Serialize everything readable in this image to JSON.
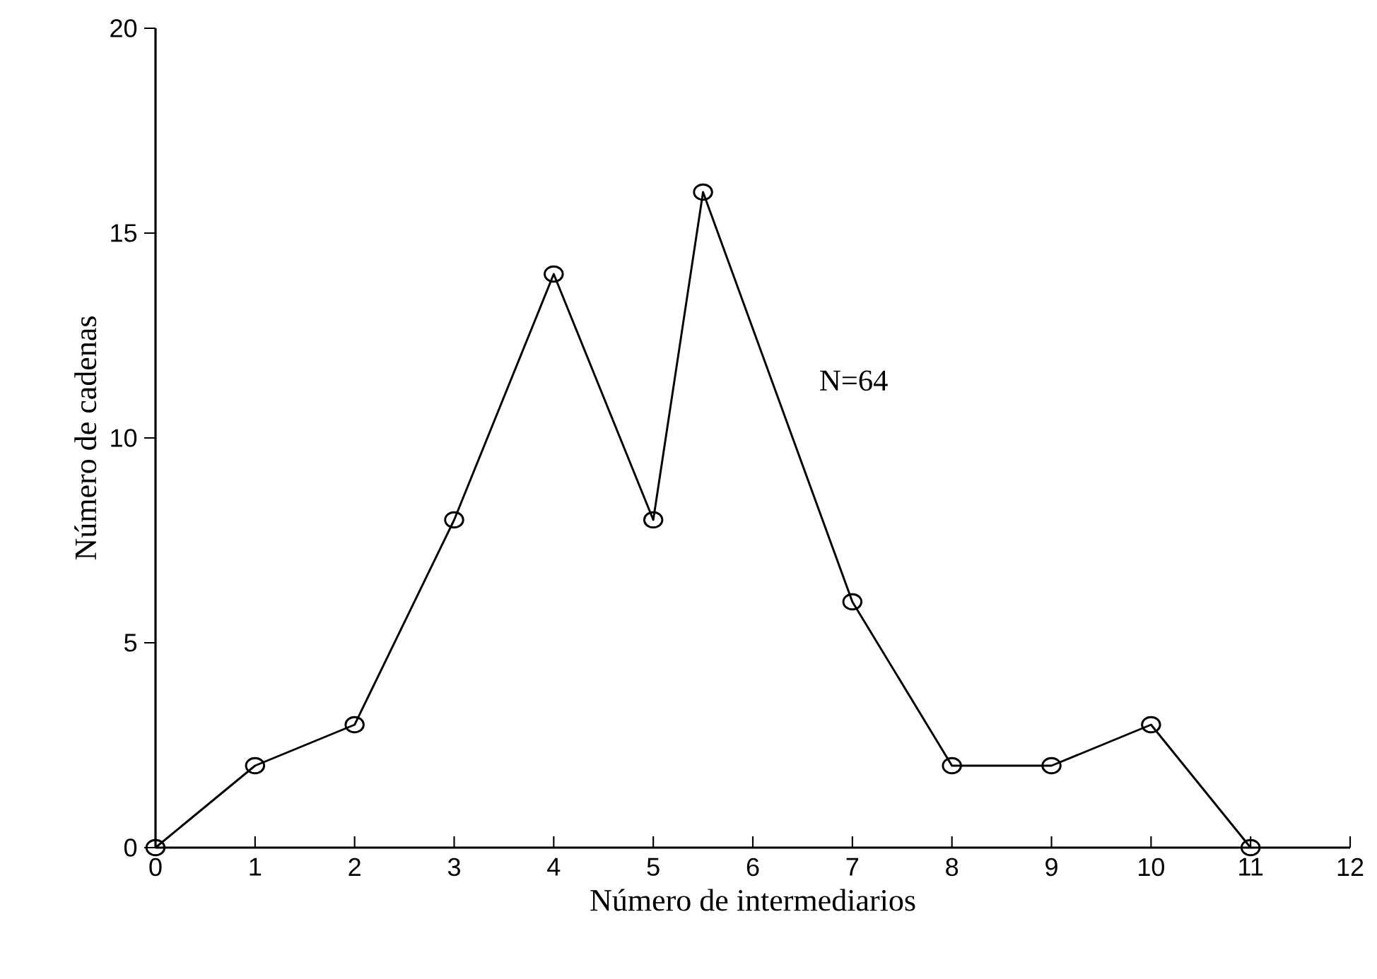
{
  "chart_data": {
    "type": "line",
    "xlabel": "Número de intermediarios",
    "ylabel": "Número de cadenas",
    "x": [
      0,
      1,
      2,
      3,
      4,
      5,
      5.5,
      7,
      8,
      9,
      10,
      11
    ],
    "values": [
      0,
      2,
      3,
      8,
      14,
      8,
      16,
      6,
      2,
      2,
      3,
      0
    ],
    "color": "#000000",
    "marker": "circle",
    "line_style": "solid",
    "grid": false,
    "xlim": [
      0,
      12
    ],
    "ylim": [
      0,
      20
    ],
    "xticks": [
      0,
      1,
      2,
      3,
      4,
      5,
      6,
      7,
      8,
      9,
      10,
      11,
      12
    ],
    "yticks": [
      0,
      5,
      10,
      15,
      20
    ],
    "annotations": [
      "N=64"
    ]
  }
}
